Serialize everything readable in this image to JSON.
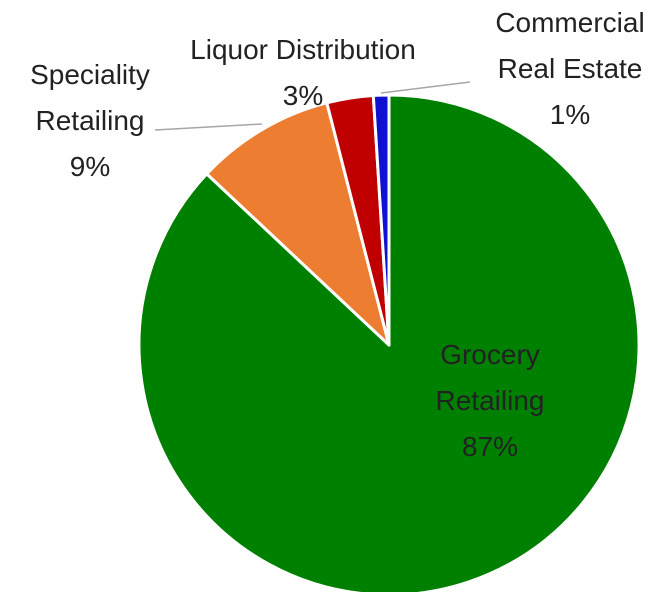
{
  "chart_data": {
    "type": "pie",
    "categories": [
      "Grocery Retailing",
      "Speciality Retailing",
      "Liquor Distribution",
      "Commercial Real Estate"
    ],
    "values": [
      87,
      9,
      3,
      1
    ],
    "value_labels": [
      "87%",
      "9%",
      "3%",
      "1%"
    ],
    "colors": [
      "#008000",
      "#ed7d31",
      "#c00000",
      "#1010d0"
    ]
  }
}
